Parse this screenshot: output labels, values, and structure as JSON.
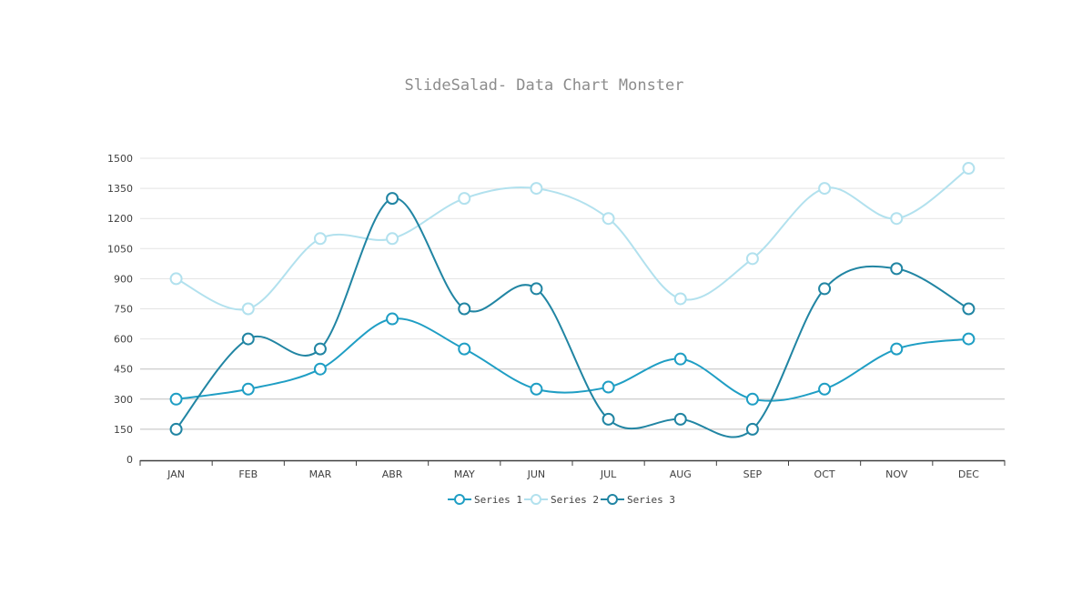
{
  "chart_data": {
    "type": "line",
    "title": "SlideSalad- Data Chart Monster",
    "xlabel": "",
    "ylabel": "",
    "categories": [
      "JAN",
      "FEB",
      "MAR",
      "ABR",
      "MAY",
      "JUN",
      "JUL",
      "AUG",
      "SEP",
      "OCT",
      "NOV",
      "DEC"
    ],
    "ylim": [
      0,
      1500
    ],
    "yticks": [
      0,
      150,
      300,
      450,
      600,
      750,
      900,
      1050,
      1200,
      1350,
      1500
    ],
    "ytick_labels": [
      "0",
      "150",
      "300",
      "450",
      "600",
      "750",
      "900",
      "1050",
      "1200",
      "1350",
      "1500"
    ],
    "grid": true,
    "smooth": true,
    "legend_position": "bottom",
    "series": [
      {
        "name": "Series 1",
        "color": "#1f9ec4",
        "values": [
          300,
          350,
          450,
          700,
          550,
          350,
          360,
          500,
          300,
          350,
          550,
          600
        ]
      },
      {
        "name": "Series 2",
        "color": "#b2e1ee",
        "values": [
          900,
          750,
          1100,
          1100,
          1300,
          1350,
          1200,
          800,
          1000,
          1350,
          1200,
          1450
        ]
      },
      {
        "name": "Series 3",
        "color": "#2185a3",
        "values": [
          150,
          600,
          550,
          1300,
          750,
          850,
          200,
          200,
          150,
          850,
          950,
          750
        ]
      }
    ]
  }
}
